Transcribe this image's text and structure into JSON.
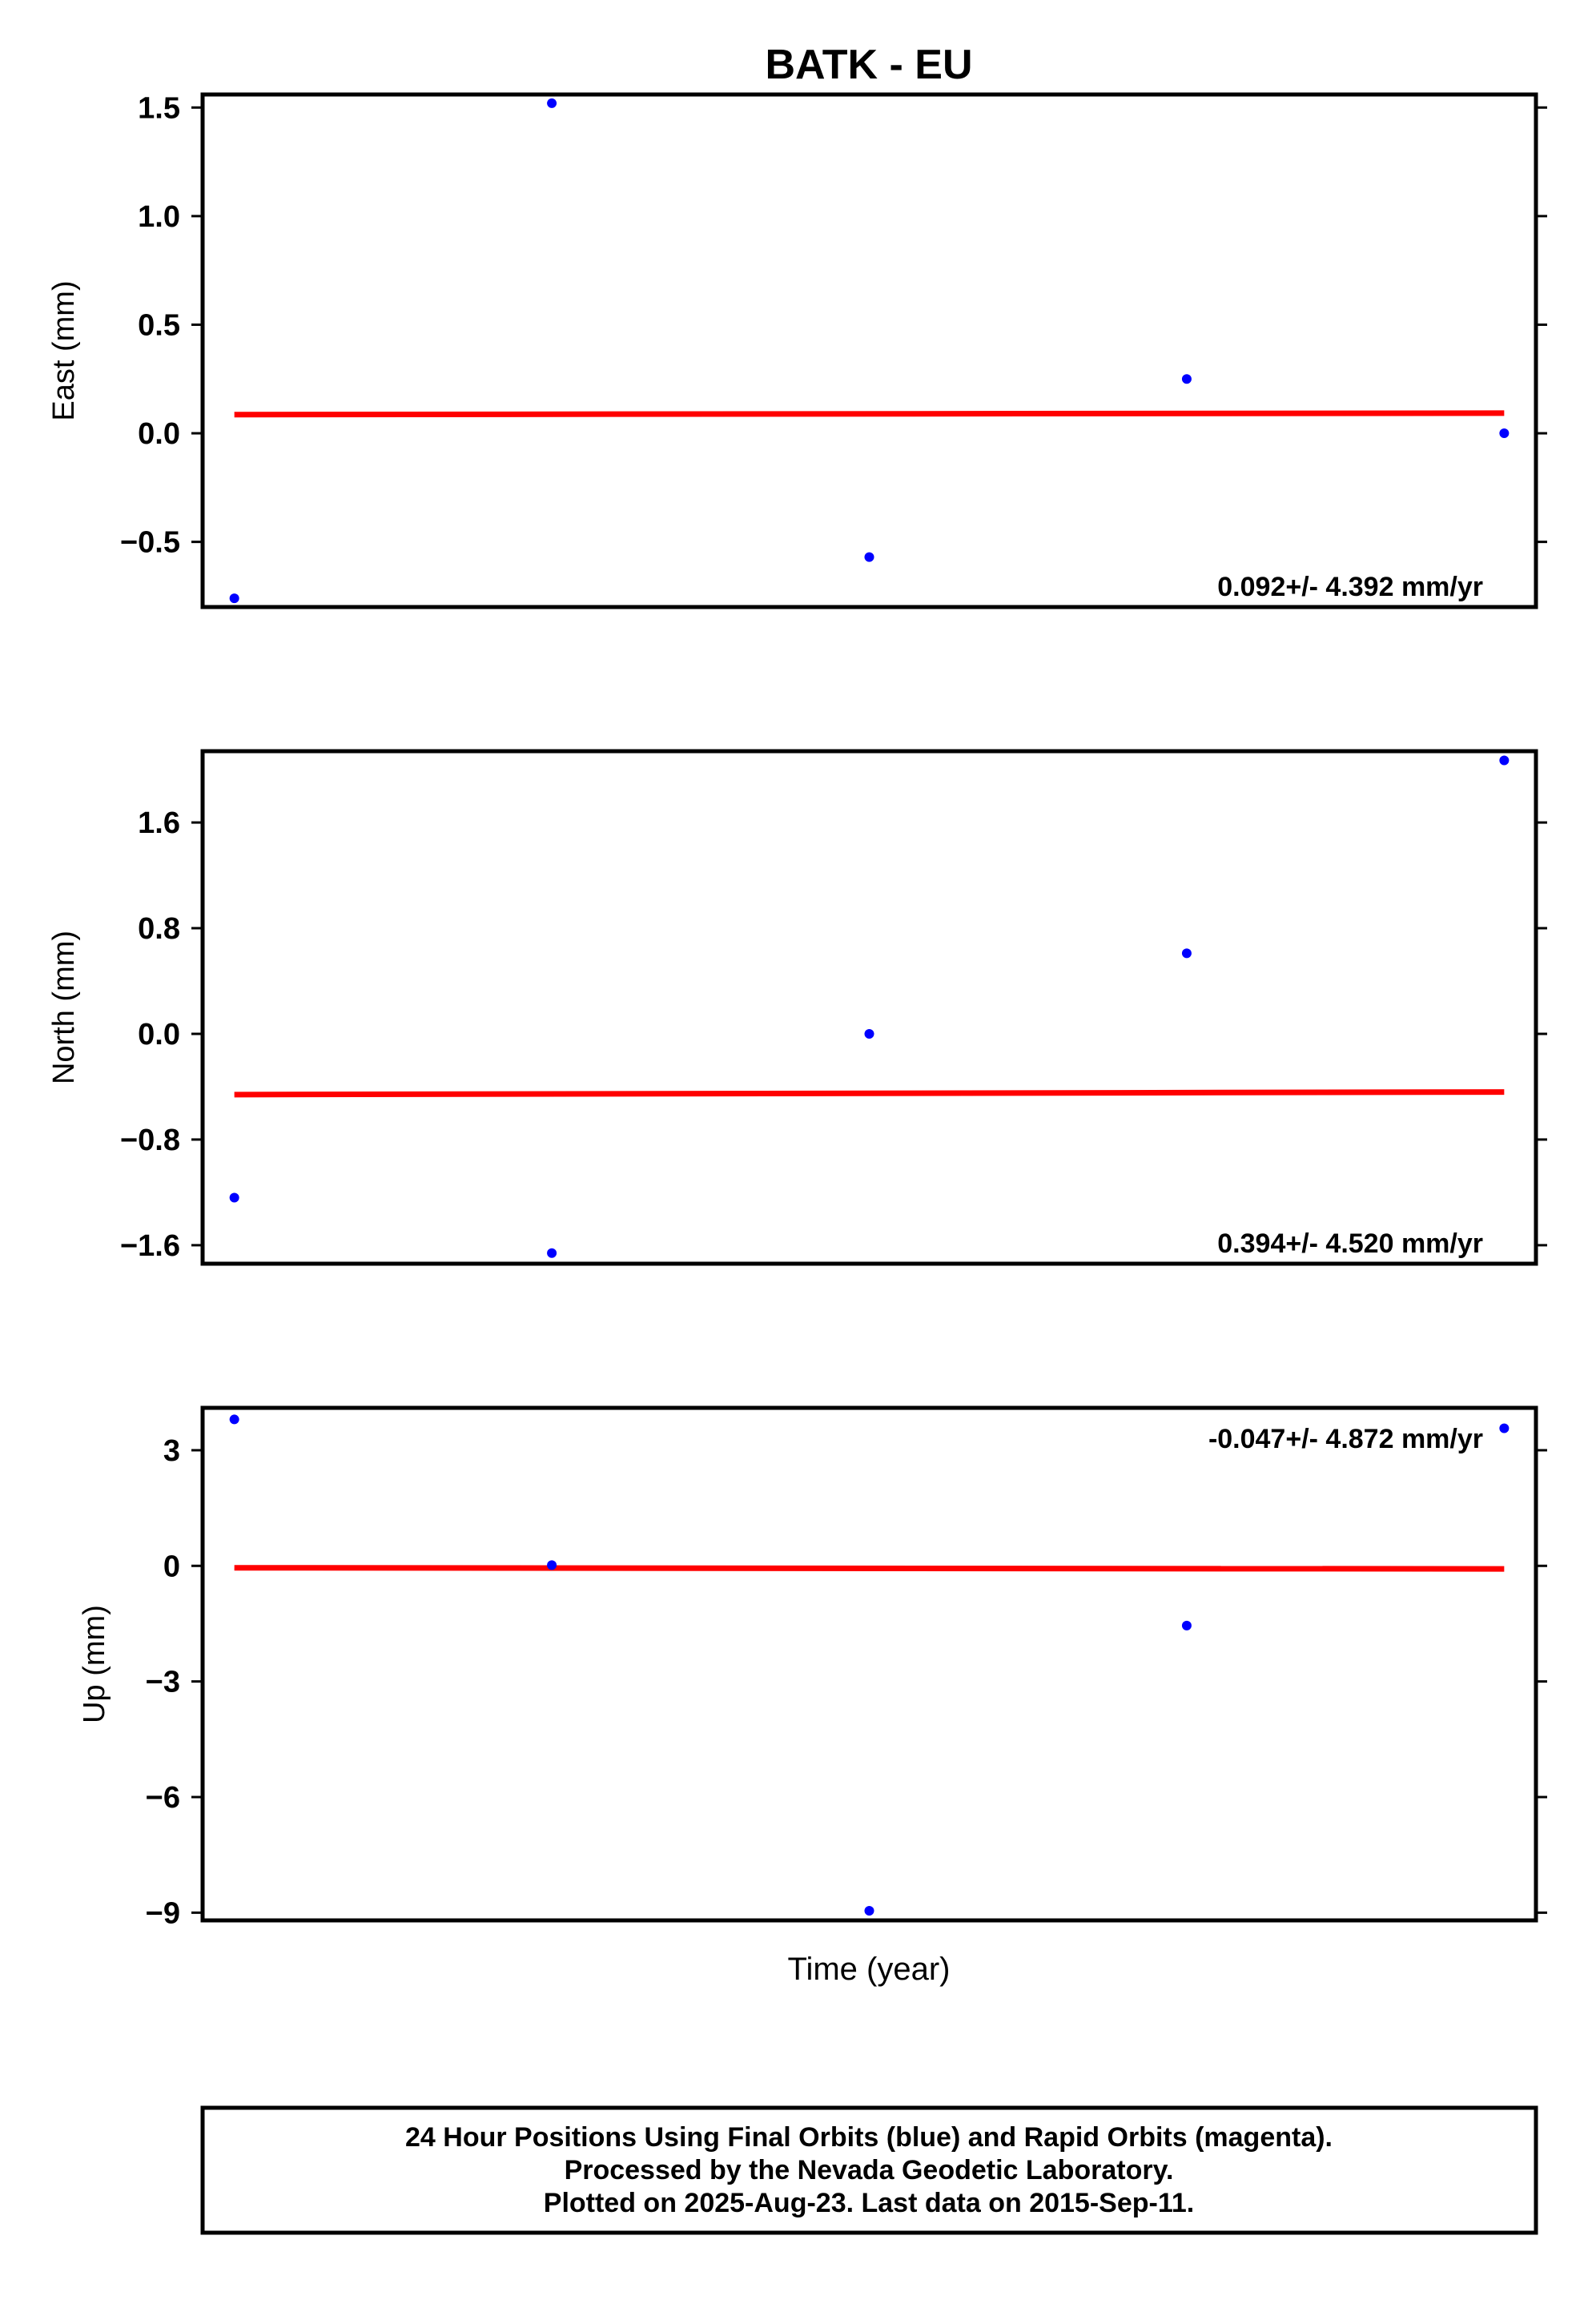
{
  "chart_data": {
    "title": "BATK - EU",
    "xlabel": "Time (year)",
    "colors": {
      "final_orbits": "#0000ff",
      "rapid_orbits": "#ff00ff",
      "trend": "#ff0000",
      "frame": "#000000"
    },
    "panels": [
      {
        "type": "scatter",
        "ylabel": "East (mm)",
        "ylim": [
          -0.8,
          1.56
        ],
        "yticks": [
          1.5,
          1.0,
          0.5,
          0.0,
          -0.5
        ],
        "ytick_labels": [
          "1.5",
          "1.0",
          "0.5",
          "0.0",
          "−0.5"
        ],
        "x": [
          1,
          2,
          3,
          4,
          5
        ],
        "y": [
          -0.76,
          1.52,
          -0.57,
          0.25,
          0.0
        ],
        "trend": [
          0.086,
          0.093
        ],
        "rate_text": "0.092+/- 4.392 mm/yr",
        "rate_pos": "bottom-right"
      },
      {
        "type": "scatter",
        "ylabel": "North (mm)",
        "ylim": [
          -1.74,
          2.14
        ],
        "yticks": [
          1.6,
          0.8,
          0.0,
          -0.8,
          -1.6
        ],
        "ytick_labels": [
          "1.6",
          "0.8",
          "0.0",
          "−0.8",
          "−1.6"
        ],
        "x": [
          1,
          2,
          3,
          4,
          5
        ],
        "y": [
          -1.24,
          -1.66,
          0.0,
          0.61,
          2.07
        ],
        "trend": [
          -0.46,
          -0.44
        ],
        "rate_text": "0.394+/- 4.520 mm/yr",
        "rate_pos": "bottom-right"
      },
      {
        "type": "scatter",
        "ylabel": "Up (mm)",
        "ylim": [
          -9.2,
          4.1
        ],
        "yticks": [
          3,
          0,
          -3,
          -6,
          -9
        ],
        "ytick_labels": [
          "3",
          "0",
          "−3",
          "−6",
          "−9"
        ],
        "x": [
          1,
          2,
          3,
          4,
          5
        ],
        "y": [
          3.8,
          0.02,
          -8.95,
          -1.55,
          3.57
        ],
        "trend": [
          -0.05,
          -0.08
        ],
        "rate_text": "-0.047+/- 4.872 mm/yr",
        "rate_pos": "top-right"
      }
    ]
  },
  "footer": {
    "lines": [
      "24 Hour Positions Using Final Orbits (blue) and Rapid Orbits (magenta).",
      "Processed by the Nevada Geodetic Laboratory.",
      "Plotted on 2025-Aug-23. Last data on 2015-Sep-11."
    ]
  }
}
